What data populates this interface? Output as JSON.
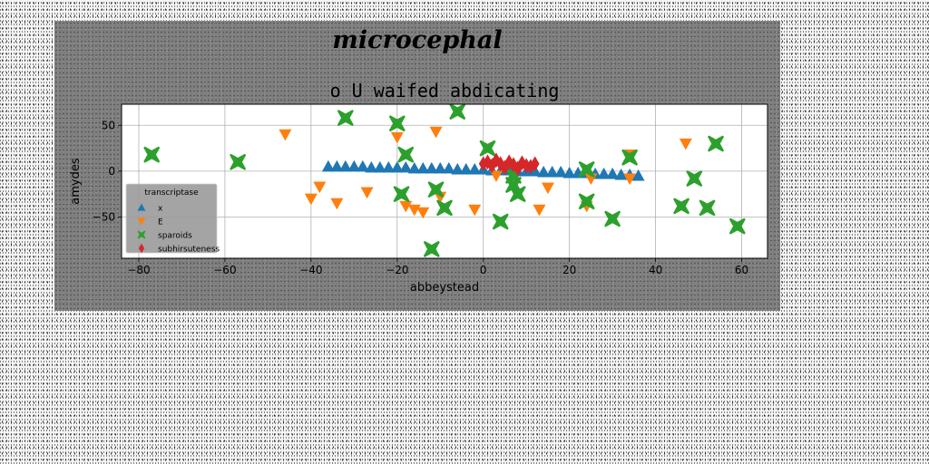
{
  "figure": {
    "suptitle": "microcephal"
  },
  "chart_data": {
    "type": "scatter",
    "title": "o U waifed abdicating",
    "xlabel": "abbeystead",
    "ylabel": "amydes",
    "xlim": [
      -84,
      66
    ],
    "ylim": [
      -95,
      73
    ],
    "xticks": [
      -80,
      -60,
      -40,
      -20,
      0,
      20,
      40,
      60
    ],
    "xtick_labels": [
      "−80",
      "−60",
      "−40",
      "−20",
      "0",
      "20",
      "40",
      "60"
    ],
    "yticks": [
      -50,
      0,
      50
    ],
    "ytick_labels": [
      "−50",
      "0",
      "50"
    ],
    "grid": true,
    "legend": {
      "title": "transcriptase",
      "placement": "lower-left"
    },
    "series": [
      {
        "name": "x",
        "marker": "triangle-up",
        "color": "#1f77b4",
        "points": [
          [
            -36,
            5
          ],
          [
            -34,
            5
          ],
          [
            -32,
            5
          ],
          [
            -30,
            5
          ],
          [
            -28,
            5
          ],
          [
            -26,
            4
          ],
          [
            -24,
            4
          ],
          [
            -22,
            4
          ],
          [
            -20,
            4
          ],
          [
            -18,
            4
          ],
          [
            -16,
            3
          ],
          [
            -14,
            3
          ],
          [
            -12,
            3
          ],
          [
            -10,
            3
          ],
          [
            -8,
            3
          ],
          [
            -6,
            2
          ],
          [
            -4,
            2
          ],
          [
            -2,
            2
          ],
          [
            0,
            2
          ],
          [
            2,
            1
          ],
          [
            4,
            1
          ],
          [
            6,
            1
          ],
          [
            8,
            0
          ],
          [
            10,
            0
          ],
          [
            12,
            0
          ],
          [
            14,
            -1
          ],
          [
            16,
            -1
          ],
          [
            18,
            -1
          ],
          [
            20,
            -2
          ],
          [
            22,
            -2
          ],
          [
            24,
            -2
          ],
          [
            26,
            -3
          ],
          [
            28,
            -3
          ],
          [
            30,
            -3
          ],
          [
            32,
            -4
          ],
          [
            34,
            -4
          ],
          [
            36,
            -5
          ]
        ]
      },
      {
        "name": "E",
        "marker": "triangle-down",
        "color": "#ff7f0e",
        "points": [
          [
            -46,
            40
          ],
          [
            -38,
            -17
          ],
          [
            -40,
            -30
          ],
          [
            -34,
            -35
          ],
          [
            -27,
            -23
          ],
          [
            -20,
            37
          ],
          [
            -18,
            -38
          ],
          [
            -16,
            -42
          ],
          [
            -14,
            -45
          ],
          [
            -11,
            43
          ],
          [
            -10,
            -28
          ],
          [
            -2,
            -42
          ],
          [
            3,
            -5
          ],
          [
            13,
            -42
          ],
          [
            15,
            -18
          ],
          [
            24,
            -38
          ],
          [
            25,
            -8
          ],
          [
            34,
            18
          ],
          [
            34,
            -8
          ],
          [
            47,
            30
          ]
        ]
      },
      {
        "name": "sparoids",
        "marker": "x-thick",
        "color": "#2ca02c",
        "points": [
          [
            -77,
            18
          ],
          [
            -57,
            10
          ],
          [
            -32,
            58
          ],
          [
            -20,
            52
          ],
          [
            -18,
            18
          ],
          [
            -19,
            -25
          ],
          [
            -12,
            -85
          ],
          [
            -11,
            -20
          ],
          [
            -9,
            -40
          ],
          [
            -6,
            65
          ],
          [
            1,
            25
          ],
          [
            4,
            -55
          ],
          [
            7,
            -5
          ],
          [
            7,
            -15
          ],
          [
            8,
            -25
          ],
          [
            24,
            2
          ],
          [
            24,
            -33
          ],
          [
            30,
            -52
          ],
          [
            34,
            15
          ],
          [
            46,
            -38
          ],
          [
            49,
            -8
          ],
          [
            52,
            -40
          ],
          [
            54,
            30
          ],
          [
            59,
            -60
          ]
        ]
      },
      {
        "name": "subhirsuteness",
        "marker": "diamond",
        "color": "#d62728",
        "points": [
          [
            0,
            8
          ],
          [
            1,
            10
          ],
          [
            2,
            6
          ],
          [
            3,
            12
          ],
          [
            4,
            8
          ],
          [
            5,
            4
          ],
          [
            6,
            10
          ],
          [
            7,
            7
          ],
          [
            8,
            3
          ],
          [
            9,
            9
          ],
          [
            10,
            6
          ],
          [
            11,
            5
          ],
          [
            12,
            8
          ]
        ]
      }
    ]
  }
}
